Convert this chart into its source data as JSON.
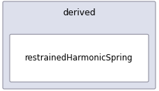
{
  "outer_label": "derived",
  "inner_label": "restrainedHarmonicSpring",
  "outer_bg": "#dde0ec",
  "inner_bg": "#ffffff",
  "outer_border": "#9090a0",
  "inner_border": "#9090a0",
  "text_color": "#000000",
  "outer_fontsize": 9,
  "inner_fontsize": 8.5,
  "fig_bg": "#ffffff"
}
